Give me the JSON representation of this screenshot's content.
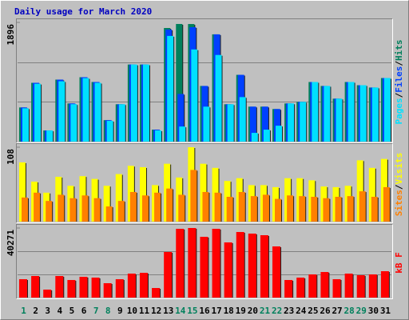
{
  "chart_data": [
    {
      "type": "bar",
      "title": "Daily usage for March 2020",
      "ylim": [
        0,
        1896
      ],
      "yticks": [
        1896
      ],
      "grid": true,
      "legend_separator": "/",
      "series": [
        {
          "name": "Hits",
          "color": "#00805c",
          "values": [
            543,
            935,
            177,
            986,
            607,
            1024,
            948,
            341,
            594,
            1226,
            1226,
            190,
            1807,
            1871,
            1870,
            885,
            1706,
            594,
            1062,
            556,
            556,
            518,
            607,
            632,
            948,
            885,
            683,
            948,
            897,
            860,
            1011
          ]
        },
        {
          "name": "Files",
          "color": "#0040ff",
          "values": [
            543,
            935,
            177,
            986,
            607,
            1024,
            948,
            341,
            594,
            1226,
            1226,
            190,
            1782,
            758,
            1820,
            885,
            1706,
            594,
            1062,
            556,
            556,
            518,
            607,
            632,
            948,
            885,
            683,
            948,
            897,
            860,
            1011
          ]
        },
        {
          "name": "Pages",
          "color": "#00e0ff",
          "values": [
            530,
            920,
            177,
            960,
            595,
            1010,
            935,
            330,
            594,
            1226,
            1226,
            178,
            1681,
            240,
            1466,
            556,
            1378,
            594,
            708,
            139,
            190,
            253,
            607,
            632,
            948,
            885,
            683,
            948,
            897,
            860,
            1011
          ]
        }
      ]
    },
    {
      "type": "bar",
      "ylim": [
        0,
        108
      ],
      "yticks": [
        108
      ],
      "legend_separator": "/",
      "series": [
        {
          "name": "Visits",
          "color": "#ffff00",
          "values": [
            86,
            58,
            42,
            65,
            52,
            66,
            62,
            52,
            69,
            81,
            79,
            53,
            84,
            64,
            108,
            84,
            78,
            59,
            63,
            53,
            53,
            50,
            63,
            63,
            60,
            51,
            50,
            52,
            89,
            78,
            91
          ]
        },
        {
          "name": "Sites",
          "color": "#ff8000",
          "values": [
            35,
            42,
            30,
            39,
            34,
            38,
            34,
            22,
            30,
            43,
            38,
            42,
            48,
            39,
            75,
            43,
            42,
            36,
            43,
            37,
            39,
            33,
            38,
            37,
            36,
            34,
            36,
            37,
            44,
            36,
            50
          ]
        }
      ]
    },
    {
      "type": "bar",
      "ylim": [
        0,
        40271
      ],
      "yticks": [
        40271
      ],
      "grid": true,
      "categories": [
        "1",
        "2",
        "3",
        "4",
        "5",
        "6",
        "7",
        "8",
        "9",
        "10",
        "11",
        "12",
        "13",
        "14",
        "15",
        "16",
        "17",
        "18",
        "19",
        "20",
        "21",
        "22",
        "23",
        "24",
        "25",
        "26",
        "27",
        "28",
        "29",
        "30",
        "31"
      ],
      "weekend_categories": [
        "1",
        "7",
        "8",
        "14",
        "15",
        "21",
        "22",
        "28",
        "29"
      ],
      "weekend_color": "#00805c",
      "series": [
        {
          "name": "kB F",
          "color": "#ff0000",
          "values": [
            10646,
            12498,
            4629,
            12498,
            10183,
            12035,
            11572,
            8332,
            10646,
            13887,
            14349,
            5555,
            26384,
            39808,
            40271,
            35179,
            39808,
            31939,
            37956,
            37031,
            36105,
            29625,
            10183,
            11572,
            13424,
            14812,
            10646,
            13887,
            12961,
            13424,
            15275
          ]
        }
      ]
    }
  ]
}
